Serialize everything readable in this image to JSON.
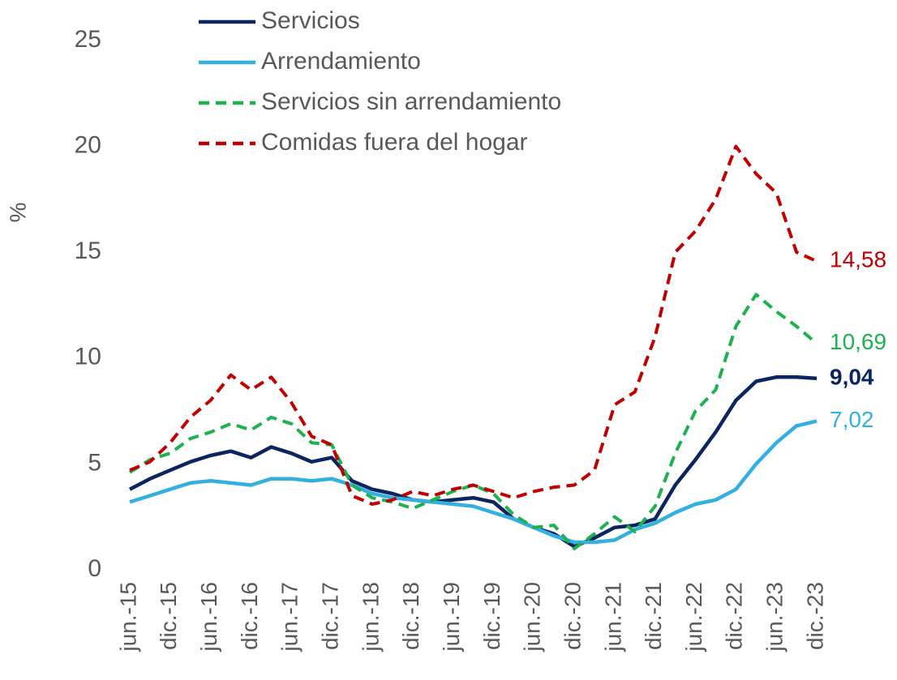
{
  "chart_data": {
    "type": "line",
    "ylabel": "%",
    "ylim": [
      0,
      25
    ],
    "yticks": [
      0,
      5,
      10,
      15,
      20,
      25
    ],
    "grid": false,
    "legend": "top-left",
    "categories": [
      "jun.-15",
      null,
      "dic.-15",
      null,
      "jun.-16",
      null,
      "dic.-16",
      null,
      "jun.-17",
      null,
      "dic.-17",
      null,
      "jun.-18",
      null,
      "dic.-18",
      null,
      "jun.-19",
      null,
      "dic.-19",
      null,
      "jun.-20",
      null,
      "dic.-20",
      null,
      "jun.-21",
      null,
      "dic.-21",
      null,
      "jun.-22",
      null,
      "dic.-22",
      null,
      "jun.-23",
      null,
      "dic.-23"
    ],
    "series": [
      {
        "name": "Servicios",
        "color": "#0b2561",
        "dash": false,
        "bold_label": true,
        "values": [
          3.8,
          4.3,
          4.7,
          5.1,
          5.4,
          5.6,
          5.3,
          5.8,
          5.5,
          5.1,
          5.3,
          4.2,
          3.8,
          3.6,
          3.3,
          3.2,
          3.3,
          3.4,
          3.2,
          2.4,
          2.0,
          1.7,
          1.1,
          1.5,
          2.0,
          2.1,
          2.4,
          4.0,
          5.2,
          6.5,
          8.0,
          8.9,
          9.1,
          9.1,
          9.04
        ],
        "value_labels": [
          null,
          null,
          null,
          null,
          null,
          null,
          null,
          null,
          null,
          null,
          null,
          null,
          null,
          null,
          null,
          null,
          null,
          null,
          null,
          null,
          null,
          null,
          null,
          null,
          null,
          null,
          null,
          null,
          null,
          null,
          null,
          null,
          null,
          null,
          "9,04"
        ]
      },
      {
        "name": "Arrendamiento",
        "color": "#33b0e0",
        "dash": false,
        "bold_label": false,
        "values": [
          3.2,
          3.5,
          3.8,
          4.1,
          4.2,
          4.1,
          4.0,
          4.3,
          4.3,
          4.2,
          4.3,
          4.0,
          3.6,
          3.4,
          3.3,
          3.2,
          3.1,
          3.0,
          2.7,
          2.4,
          2.0,
          1.6,
          1.3,
          1.3,
          1.4,
          1.9,
          2.2,
          2.7,
          3.1,
          3.3,
          3.8,
          5.0,
          6.0,
          6.8,
          7.02
        ],
        "value_labels": [
          null,
          null,
          null,
          null,
          null,
          null,
          null,
          null,
          null,
          null,
          null,
          null,
          null,
          null,
          null,
          null,
          null,
          null,
          null,
          null,
          null,
          null,
          null,
          null,
          null,
          null,
          null,
          null,
          null,
          null,
          null,
          null,
          null,
          null,
          "7,02"
        ]
      },
      {
        "name": "Servicios sin arrendamiento",
        "color": "#1db14f",
        "dash": true,
        "bold_label": false,
        "values": [
          4.6,
          5.2,
          5.5,
          6.2,
          6.5,
          6.9,
          6.6,
          7.2,
          6.9,
          6.0,
          5.9,
          4.0,
          3.4,
          3.2,
          2.9,
          3.3,
          3.7,
          4.0,
          3.6,
          2.6,
          2.0,
          2.1,
          1.0,
          1.7,
          2.5,
          1.8,
          3.0,
          5.5,
          7.5,
          8.5,
          11.5,
          13.0,
          12.2,
          11.5,
          10.69
        ],
        "value_labels": [
          null,
          null,
          null,
          null,
          null,
          null,
          null,
          null,
          null,
          null,
          null,
          null,
          null,
          null,
          null,
          null,
          null,
          null,
          null,
          null,
          null,
          null,
          null,
          null,
          null,
          null,
          null,
          null,
          null,
          null,
          null,
          null,
          null,
          null,
          "10,69"
        ]
      },
      {
        "name": "Comidas fuera del hogar",
        "color": "#c00000",
        "dash": true,
        "bold_label": false,
        "values": [
          4.7,
          5.1,
          6.0,
          7.2,
          8.0,
          9.2,
          8.5,
          9.1,
          7.9,
          6.3,
          5.9,
          3.5,
          3.1,
          3.3,
          3.7,
          3.5,
          3.8,
          4.0,
          3.7,
          3.4,
          3.7,
          3.9,
          4.0,
          4.7,
          7.8,
          8.4,
          11.0,
          15.0,
          16.0,
          17.5,
          20.0,
          18.7,
          17.8,
          15.0,
          14.58
        ],
        "value_labels": [
          null,
          null,
          null,
          null,
          null,
          null,
          null,
          null,
          null,
          null,
          null,
          null,
          null,
          null,
          null,
          null,
          null,
          null,
          null,
          null,
          null,
          null,
          null,
          null,
          null,
          null,
          null,
          null,
          null,
          null,
          null,
          null,
          null,
          null,
          "14,58"
        ]
      }
    ]
  }
}
